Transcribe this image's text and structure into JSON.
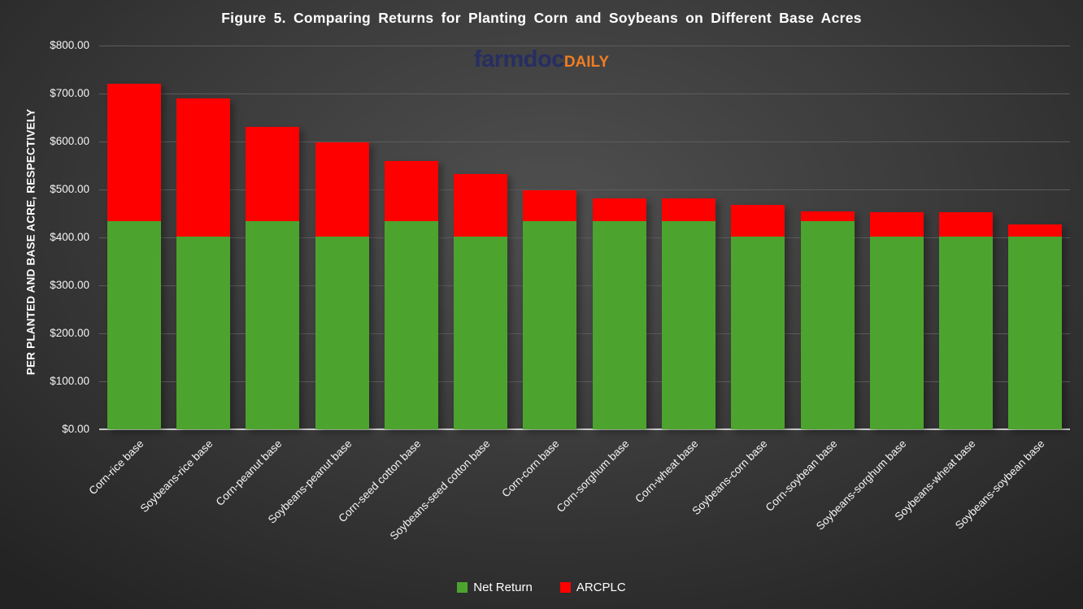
{
  "title": "Figure 5. Comparing Returns for Planting Corn and Soybeans on Different Base Acres",
  "logo": {
    "primary": "farmdoc",
    "secondary": "DAILY",
    "primary_color": "#262e63",
    "secondary_color": "#f07d22"
  },
  "y_axis": {
    "title": "PER PLANTED AND BASE ACRE, RESPECTIVELY",
    "tick_labels": [
      "$800.00",
      "$700.00",
      "$600.00",
      "$500.00",
      "$400.00",
      "$300.00",
      "$200.00",
      "$100.00",
      "$0.00"
    ]
  },
  "legend": [
    {
      "label": "Net Return",
      "color": "#4CA42E"
    },
    {
      "label": "ARCPLC",
      "color": "#FF0000"
    }
  ],
  "chart_data": {
    "type": "bar",
    "stacked": true,
    "title": "Figure 5. Comparing Returns for Planting Corn and Soybeans on Different Base Acres",
    "xlabel": "",
    "ylabel": "PER PLANTED AND BASE ACRE, RESPECTIVELY",
    "ylim": [
      0,
      800
    ],
    "ytick_step": 100,
    "grid": true,
    "legend_position": "bottom",
    "categories": [
      "Corn-rice base",
      "Soybeans-rice base",
      "Corn-peanut base",
      "Soybeans-peanut base",
      "Corn-seed cotton base",
      "Soybeans-seed cotton base",
      "Corn-corn base",
      "Corn-sorghum base",
      "Corn-wheat base",
      "Soybeans-corn base",
      "Corn-soybean base",
      "Soybeans-sorghum base",
      "Soybeans-wheat base",
      "Soybeans-soybean base"
    ],
    "series": [
      {
        "name": "Net Return",
        "color": "#4CA42E",
        "values": [
          434,
          402,
          434,
          402,
          434,
          402,
          434,
          434,
          434,
          402,
          434,
          402,
          402,
          402
        ]
      },
      {
        "name": "ARCPLC",
        "color": "#FF0000",
        "values": [
          286,
          287,
          196,
          197,
          126,
          130,
          64,
          48,
          48,
          66,
          21,
          50,
          50,
          25
        ]
      }
    ],
    "totals": [
      720,
      689,
      630,
      599,
      560,
      532,
      498,
      482,
      482,
      468,
      455,
      452,
      452,
      427
    ]
  }
}
